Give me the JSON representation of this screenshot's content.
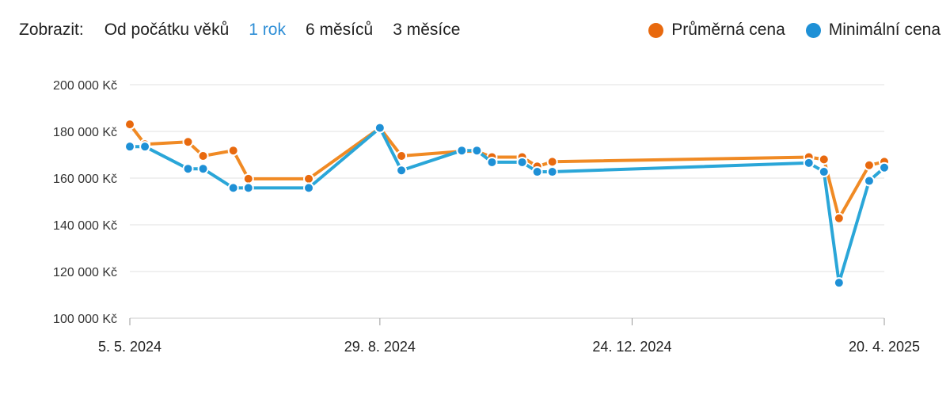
{
  "toolbar": {
    "label": "Zobrazit:",
    "options": [
      "Od počátku věků",
      "1 rok",
      "6 měsíců",
      "3 měsíce"
    ],
    "active_index": 1
  },
  "legend": [
    {
      "name": "Průměrná cena",
      "color": "#e8690e"
    },
    {
      "name": "Minimální cena",
      "color": "#1e90d6"
    }
  ],
  "chart_data": {
    "type": "line",
    "title": "",
    "xlabel": "",
    "ylabel": "",
    "ylim": [
      100000,
      200000
    ],
    "y_ticks": [
      100000,
      120000,
      140000,
      160000,
      180000,
      200000
    ],
    "y_tick_labels": [
      "100 000 Kč",
      "120 000 Kč",
      "140 000 Kč",
      "160 000 Kč",
      "180 000 Kč",
      "200 000 Kč"
    ],
    "x_range": [
      "2024-05-05",
      "2025-04-20"
    ],
    "x_ticks": [
      "2024-05-05",
      "2024-08-29",
      "2024-12-24",
      "2025-04-20"
    ],
    "x_tick_labels": [
      "5. 5. 2024",
      "29. 8. 2024",
      "24. 12. 2024",
      "20. 4. 2025"
    ],
    "grid": true,
    "legend_position": "top-right",
    "series": [
      {
        "name": "Průměrná cena",
        "color": "#f08a24",
        "marker_color": "#e8690e",
        "points": [
          [
            "2024-05-05",
            183000
          ],
          [
            "2024-05-12",
            174500
          ],
          [
            "2024-06-01",
            175500
          ],
          [
            "2024-06-08",
            169500
          ],
          [
            "2024-06-22",
            171800
          ],
          [
            "2024-06-29",
            159700
          ],
          [
            "2024-07-27",
            159700
          ],
          [
            "2024-08-29",
            181500
          ],
          [
            "2024-09-08",
            169500
          ],
          [
            "2024-10-06",
            171500
          ],
          [
            "2024-10-13",
            171500
          ],
          [
            "2024-10-20",
            169000
          ],
          [
            "2024-11-03",
            169000
          ],
          [
            "2024-11-10",
            165000
          ],
          [
            "2024-11-17",
            167000
          ],
          [
            "2025-03-16",
            169000
          ],
          [
            "2025-03-23",
            168000
          ],
          [
            "2025-03-30",
            142800
          ],
          [
            "2025-04-13",
            165500
          ],
          [
            "2025-04-20",
            167000
          ]
        ]
      },
      {
        "name": "Minimální cena",
        "color": "#2aa6d8",
        "marker_color": "#1e90d6",
        "points": [
          [
            "2024-05-05",
            173500
          ],
          [
            "2024-05-12",
            173500
          ],
          [
            "2024-06-01",
            164000
          ],
          [
            "2024-06-08",
            164000
          ],
          [
            "2024-06-22",
            155800
          ],
          [
            "2024-06-29",
            155800
          ],
          [
            "2024-07-27",
            155800
          ],
          [
            "2024-08-29",
            181500
          ],
          [
            "2024-09-08",
            163300
          ],
          [
            "2024-10-06",
            171800
          ],
          [
            "2024-10-13",
            171800
          ],
          [
            "2024-10-20",
            166800
          ],
          [
            "2024-11-03",
            166800
          ],
          [
            "2024-11-10",
            162700
          ],
          [
            "2024-11-17",
            162700
          ],
          [
            "2025-03-16",
            166500
          ],
          [
            "2025-03-23",
            162700
          ],
          [
            "2025-03-30",
            115200
          ],
          [
            "2025-04-13",
            158800
          ],
          [
            "2025-04-20",
            164500
          ]
        ]
      }
    ]
  }
}
